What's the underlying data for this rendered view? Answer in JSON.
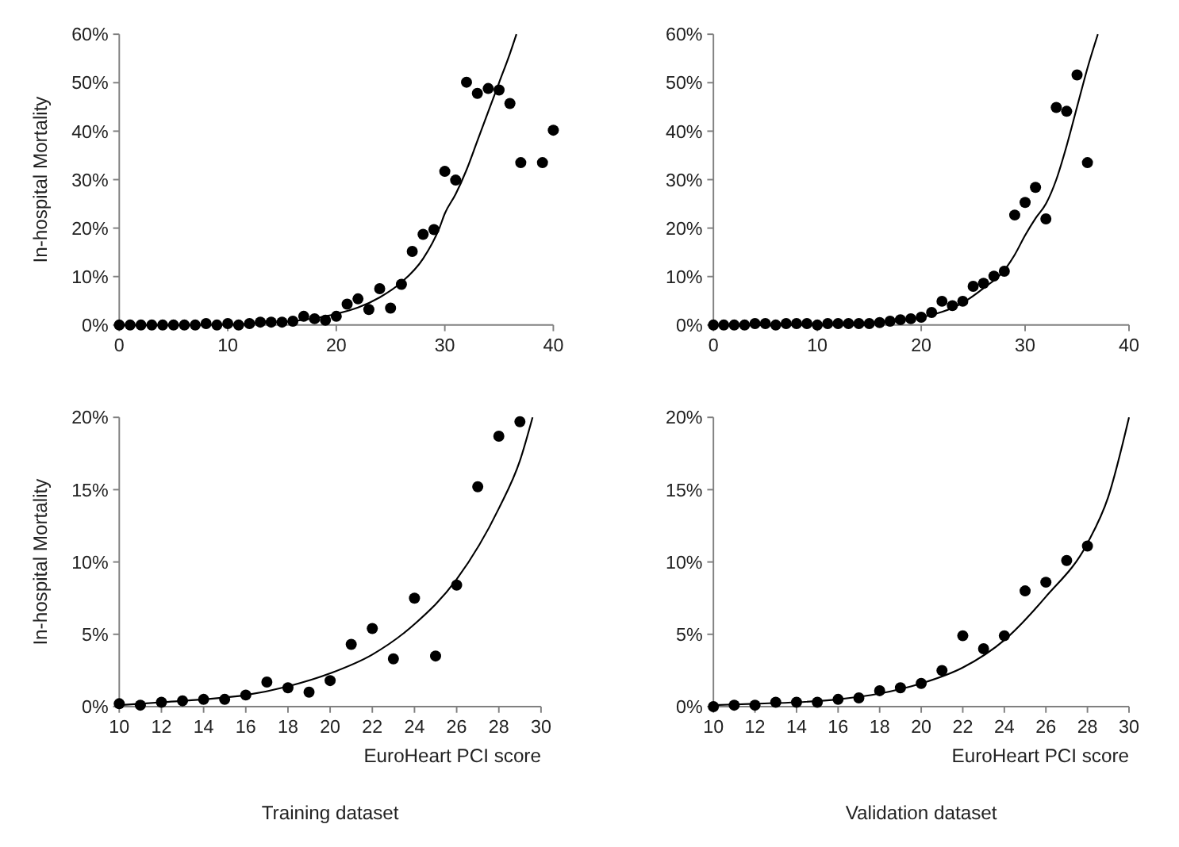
{
  "chart_data": [
    {
      "type": "scatter",
      "ylabel": "In-hospital Mortality",
      "xlim": [
        0,
        40
      ],
      "xticks": [
        0,
        10,
        20,
        30,
        40
      ],
      "ylim": [
        0,
        60
      ],
      "yticks": [
        {
          "value": 0,
          "label": "0%"
        },
        {
          "value": 10,
          "label": "10%"
        },
        {
          "value": 20,
          "label": "20%"
        },
        {
          "value": 30,
          "label": "30%"
        },
        {
          "value": 40,
          "label": "40%"
        },
        {
          "value": 50,
          "label": "50%"
        },
        {
          "value": 60,
          "label": "60%"
        }
      ],
      "grid": false,
      "series": [
        {
          "type": "scatter",
          "marker": "circle",
          "color": "#000000",
          "x": [
            0,
            1,
            2,
            3,
            4,
            5,
            6,
            7,
            8,
            9,
            10,
            11,
            12,
            13,
            14,
            15,
            16,
            17,
            18,
            19,
            20,
            21,
            22,
            23,
            24,
            25,
            26,
            27,
            28,
            29,
            30,
            31,
            32,
            33,
            34,
            35,
            36,
            37,
            39,
            40
          ],
          "values": [
            0,
            0,
            0,
            0,
            0,
            0,
            0,
            0,
            0.3,
            0,
            0.3,
            0,
            0.3,
            0.6,
            0.6,
            0.6,
            0.8,
            1.8,
            1.3,
            1.0,
            1.8,
            4.3,
            5.4,
            3.2,
            7.5,
            3.5,
            8.4,
            15.2,
            18.7,
            19.7,
            31.7,
            29.9,
            50.1,
            47.8,
            48.8,
            48.5,
            45.7,
            33.5,
            33.5,
            40.2
          ]
        },
        {
          "type": "line",
          "marker": "none",
          "color": "#000000",
          "x": [
            0,
            5,
            10,
            12,
            14,
            16,
            18,
            20,
            22,
            24,
            26,
            28,
            29.5,
            30,
            31,
            32,
            33,
            34,
            35,
            36,
            36.6
          ],
          "values": [
            0,
            0,
            0.1,
            0.3,
            0.5,
            0.8,
            1.4,
            2.3,
            3.6,
            5.7,
            8.8,
            13.7,
            20,
            23,
            27,
            32,
            38,
            44,
            50,
            56,
            60
          ]
        }
      ]
    },
    {
      "type": "scatter",
      "xlim": [
        0,
        40
      ],
      "xticks": [
        0,
        10,
        20,
        30,
        40
      ],
      "ylim": [
        0,
        60
      ],
      "yticks": [
        {
          "value": 0,
          "label": "0%"
        },
        {
          "value": 10,
          "label": "10%"
        },
        {
          "value": 20,
          "label": "20%"
        },
        {
          "value": 30,
          "label": "30%"
        },
        {
          "value": 40,
          "label": "40%"
        },
        {
          "value": 50,
          "label": "50%"
        },
        {
          "value": 60,
          "label": "60%"
        }
      ],
      "grid": false,
      "series": [
        {
          "type": "scatter",
          "marker": "circle",
          "color": "#000000",
          "x": [
            0,
            1,
            2,
            3,
            4,
            5,
            6,
            7,
            8,
            9,
            10,
            11,
            12,
            13,
            14,
            15,
            16,
            17,
            18,
            19,
            20,
            21,
            22,
            23,
            24,
            25,
            26,
            27,
            28,
            29,
            30,
            31,
            32,
            33,
            34,
            35,
            36
          ],
          "values": [
            0,
            0,
            0,
            0,
            0.3,
            0.3,
            0,
            0.3,
            0.3,
            0.3,
            0,
            0.3,
            0.3,
            0.3,
            0.3,
            0.3,
            0.5,
            0.8,
            1.1,
            1.3,
            1.6,
            2.6,
            4.9,
            4.0,
            4.9,
            8.0,
            8.6,
            10.1,
            11.1,
            22.7,
            25.3,
            28.4,
            21.9,
            44.9,
            44.1,
            51.6,
            33.5
          ]
        },
        {
          "type": "line",
          "marker": "none",
          "color": "#000000",
          "x": [
            0,
            5,
            10,
            12,
            14,
            16,
            18,
            20,
            22,
            24,
            26,
            28,
            29,
            30,
            31,
            32,
            33,
            34,
            35,
            36,
            37
          ],
          "values": [
            0,
            0,
            0.1,
            0.2,
            0.3,
            0.5,
            0.9,
            1.6,
            2.7,
            4.6,
            7.6,
            11.3,
            14.5,
            18.5,
            22,
            25,
            30,
            37,
            45,
            53,
            60
          ]
        }
      ]
    },
    {
      "type": "scatter",
      "ylabel": "In-hospital Mortality",
      "xlabel": "EuroHeart PCI score",
      "annotations": [
        "Training dataset"
      ],
      "xlim": [
        10,
        30
      ],
      "xticks": [
        10,
        12,
        14,
        16,
        18,
        20,
        22,
        24,
        26,
        28,
        30
      ],
      "ylim": [
        0,
        20
      ],
      "yticks": [
        {
          "value": 0,
          "label": "0%"
        },
        {
          "value": 5,
          "label": "5%"
        },
        {
          "value": 10,
          "label": "10%"
        },
        {
          "value": 15,
          "label": "15%"
        },
        {
          "value": 20,
          "label": "20%"
        }
      ],
      "grid": false,
      "series": [
        {
          "type": "scatter",
          "marker": "circle",
          "color": "#000000",
          "x": [
            10,
            11,
            12,
            13,
            14,
            15,
            16,
            17,
            18,
            19,
            20,
            21,
            22,
            23,
            24,
            25,
            26,
            27,
            28,
            29
          ],
          "values": [
            0.2,
            0.1,
            0.3,
            0.4,
            0.5,
            0.5,
            0.8,
            1.7,
            1.3,
            1.0,
            1.8,
            4.3,
            5.4,
            3.3,
            7.5,
            3.5,
            8.4,
            15.2,
            18.7,
            19.7
          ]
        },
        {
          "type": "line",
          "marker": "none",
          "color": "#000000",
          "x": [
            10,
            12,
            14,
            16,
            18,
            20,
            22,
            24,
            26,
            28,
            29,
            29.6
          ],
          "values": [
            0.1,
            0.3,
            0.5,
            0.8,
            1.4,
            2.3,
            3.6,
            5.7,
            8.8,
            13.7,
            17,
            20
          ]
        }
      ]
    },
    {
      "type": "scatter",
      "xlabel": "EuroHeart PCI score",
      "annotations": [
        "Validation dataset"
      ],
      "xlim": [
        10,
        30
      ],
      "xticks": [
        10,
        12,
        14,
        16,
        18,
        20,
        22,
        24,
        26,
        28,
        30
      ],
      "ylim": [
        0,
        20
      ],
      "yticks": [
        {
          "value": 0,
          "label": "0%"
        },
        {
          "value": 5,
          "label": "5%"
        },
        {
          "value": 10,
          "label": "10%"
        },
        {
          "value": 15,
          "label": "15%"
        },
        {
          "value": 20,
          "label": "20%"
        }
      ],
      "grid": false,
      "series": [
        {
          "type": "scatter",
          "marker": "circle",
          "color": "#000000",
          "x": [
            10,
            11,
            12,
            13,
            14,
            15,
            16,
            17,
            18,
            19,
            20,
            21,
            22,
            23,
            24,
            25,
            26,
            27,
            28
          ],
          "values": [
            0,
            0.1,
            0.1,
            0.3,
            0.3,
            0.3,
            0.5,
            0.6,
            1.1,
            1.3,
            1.6,
            2.5,
            4.9,
            4.0,
            4.9,
            8.0,
            8.6,
            10.1,
            11.1
          ]
        },
        {
          "type": "line",
          "marker": "none",
          "color": "#000000",
          "x": [
            10,
            12,
            14,
            16,
            18,
            20,
            22,
            24,
            26,
            28,
            29,
            30
          ],
          "values": [
            0.1,
            0.2,
            0.3,
            0.5,
            0.9,
            1.6,
            2.7,
            4.6,
            7.6,
            11.3,
            14.5,
            20
          ]
        }
      ]
    }
  ]
}
